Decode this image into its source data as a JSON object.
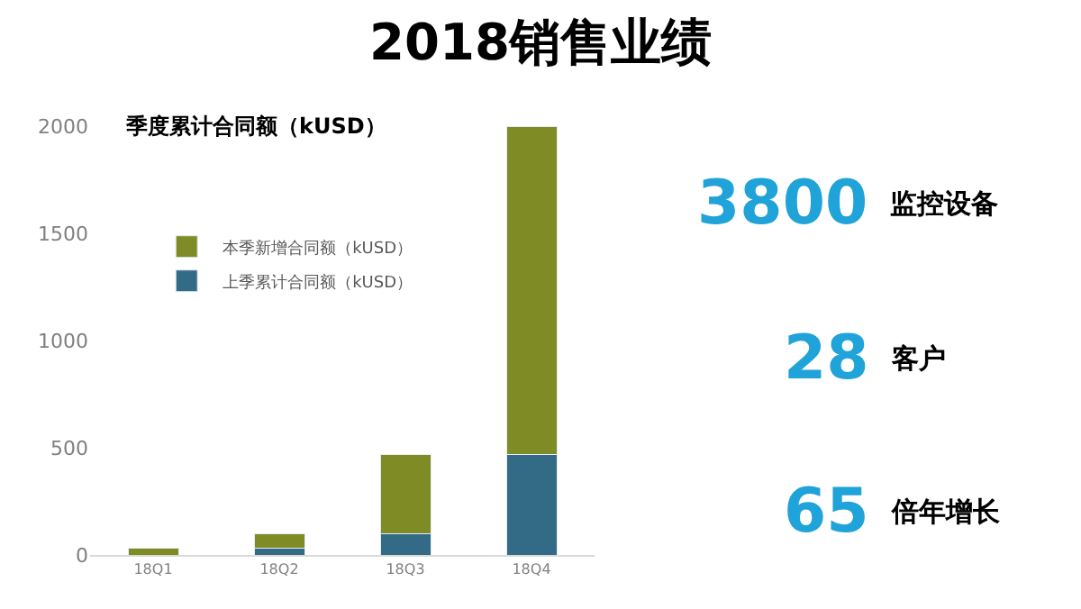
{
  "chart_data": {
    "type": "bar",
    "title": "2018销售业绩",
    "subtitle": "季度累计合同额（kUSD）",
    "categories": [
      "18Q1",
      "18Q2",
      "18Q3",
      "18Q4"
    ],
    "series": [
      {
        "name": "上季累计合同额（kUSD）",
        "color": "#336b87",
        "values": [
          null,
          30,
          100,
          470
        ]
      },
      {
        "name": "本季新增合同额（kUSD）",
        "color": "#7f8c25",
        "values": [
          30,
          70,
          370,
          1530
        ]
      }
    ],
    "stacked": true,
    "ylim": [
      0,
      2000
    ],
    "yticks": [
      0,
      500,
      1000,
      1500,
      2000
    ],
    "grid": false,
    "legend": "top left",
    "annotations": [
      "3800 监控设备",
      "28 客户",
      "65 倍年增长"
    ]
  }
}
